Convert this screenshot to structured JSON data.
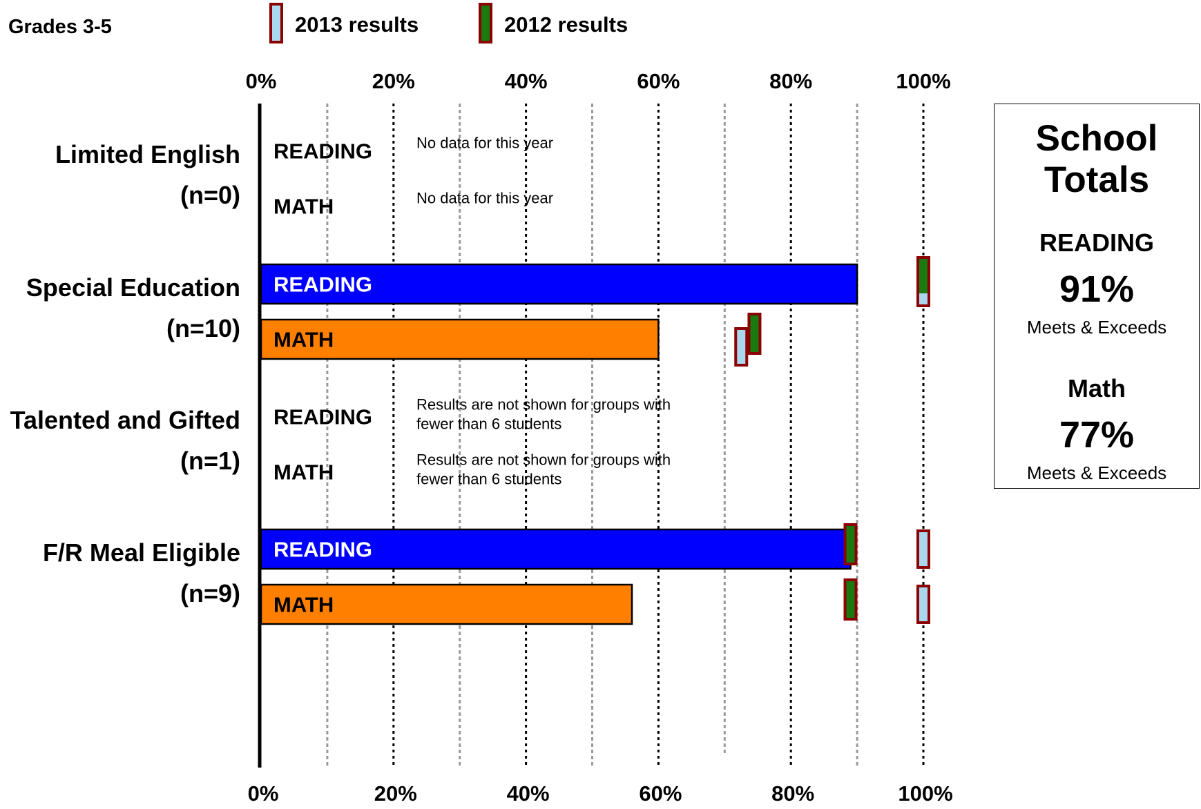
{
  "chart_data": {
    "type": "bar",
    "orientation": "horizontal",
    "title": "Grades 3-5",
    "legend": [
      {
        "name": "2013 results",
        "color": "#a9d8ee"
      },
      {
        "name": "2012 results",
        "color": "#1a7a10"
      }
    ],
    "xlim": [
      0,
      100
    ],
    "ticks": [
      "0%",
      "20%",
      "40%",
      "60%",
      "80%",
      "100%"
    ],
    "groups": [
      {
        "label": "Limited English",
        "count": "(n=0)",
        "rows": [
          {
            "subject": "READING",
            "value": null,
            "marker_2013": null,
            "marker_2012": null,
            "note": "No data for this year"
          },
          {
            "subject": "MATH",
            "value": null,
            "marker_2013": null,
            "marker_2012": null,
            "note": "No data for this year"
          }
        ]
      },
      {
        "label": "Special Education",
        "count": "(n=10)",
        "rows": [
          {
            "subject": "READING",
            "value": 90,
            "marker_2013": null,
            "marker_2012": 100,
            "note": ""
          },
          {
            "subject": "MATH",
            "value": 60,
            "marker_2013": 72.5,
            "marker_2012": 74.5,
            "note": ""
          }
        ]
      },
      {
        "label": "Talented and Gifted",
        "count": "(n=1)",
        "rows": [
          {
            "subject": "READING",
            "value": null,
            "marker_2013": null,
            "marker_2012": null,
            "note": "Results are not shown for groups with fewer than 6 students"
          },
          {
            "subject": "MATH",
            "value": null,
            "marker_2013": null,
            "marker_2012": null,
            "note": "Results are not shown for groups with fewer than 6 students"
          }
        ]
      },
      {
        "label": "F/R Meal Eligible",
        "count": "(n=9)",
        "rows": [
          {
            "subject": "READING",
            "value": 89,
            "marker_2013": 100,
            "marker_2012": 89,
            "note": ""
          },
          {
            "subject": "MATH",
            "value": 56,
            "marker_2013": 100,
            "marker_2012": 89,
            "note": ""
          }
        ]
      }
    ],
    "colors": {
      "READING": "#0000ff",
      "MATH": "#ff8000",
      "marker_border": "#8b0000",
      "grid_major": "#000000",
      "grid_minor": "#999999"
    }
  },
  "school_totals": {
    "title_line1": "School",
    "title_line2": "Totals",
    "reading_label": "READING",
    "reading_value": "91%",
    "reading_note": "Meets & Exceeds",
    "math_label": "Math",
    "math_value": "77%",
    "math_note": "Meets & Exceeds"
  }
}
